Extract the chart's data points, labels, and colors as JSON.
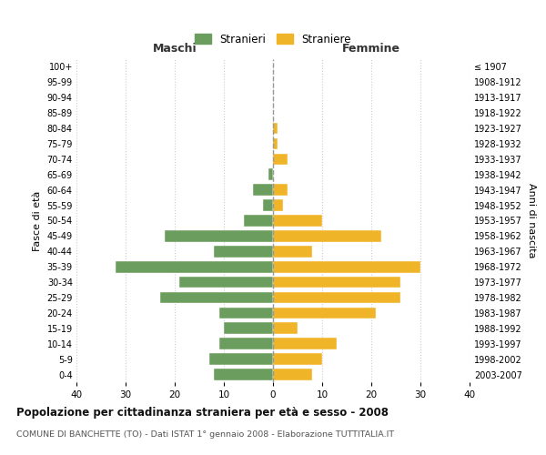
{
  "age_groups": [
    "0-4",
    "5-9",
    "10-14",
    "15-19",
    "20-24",
    "25-29",
    "30-34",
    "35-39",
    "40-44",
    "45-49",
    "50-54",
    "55-59",
    "60-64",
    "65-69",
    "70-74",
    "75-79",
    "80-84",
    "85-89",
    "90-94",
    "95-99",
    "100+"
  ],
  "birth_years": [
    "2003-2007",
    "1998-2002",
    "1993-1997",
    "1988-1992",
    "1983-1987",
    "1978-1982",
    "1973-1977",
    "1968-1972",
    "1963-1967",
    "1958-1962",
    "1953-1957",
    "1948-1952",
    "1943-1947",
    "1938-1942",
    "1933-1937",
    "1928-1932",
    "1923-1927",
    "1918-1922",
    "1913-1917",
    "1908-1912",
    "≤ 1907"
  ],
  "maschi": [
    12,
    13,
    11,
    10,
    11,
    23,
    19,
    32,
    12,
    22,
    6,
    2,
    4,
    1,
    0,
    0,
    0,
    0,
    0,
    0,
    0
  ],
  "femmine": [
    8,
    10,
    13,
    5,
    21,
    26,
    26,
    30,
    8,
    22,
    10,
    2,
    3,
    0,
    3,
    1,
    1,
    0,
    0,
    0,
    0
  ],
  "maschi_color": "#6b9e5e",
  "femmine_color": "#f0b429",
  "title": "Popolazione per cittadinanza straniera per età e sesso - 2008",
  "subtitle": "COMUNE DI BANCHETTE (TO) - Dati ISTAT 1° gennaio 2008 - Elaborazione TUTTITALIA.IT",
  "xlabel_left": "Maschi",
  "xlabel_right": "Femmine",
  "ylabel_left": "Fasce di età",
  "ylabel_right": "Anni di nascita",
  "legend_maschi": "Stranieri",
  "legend_femmine": "Straniere",
  "xlim": 40,
  "background_color": "#ffffff",
  "grid_color": "#cccccc",
  "dashed_line_color": "#999999"
}
